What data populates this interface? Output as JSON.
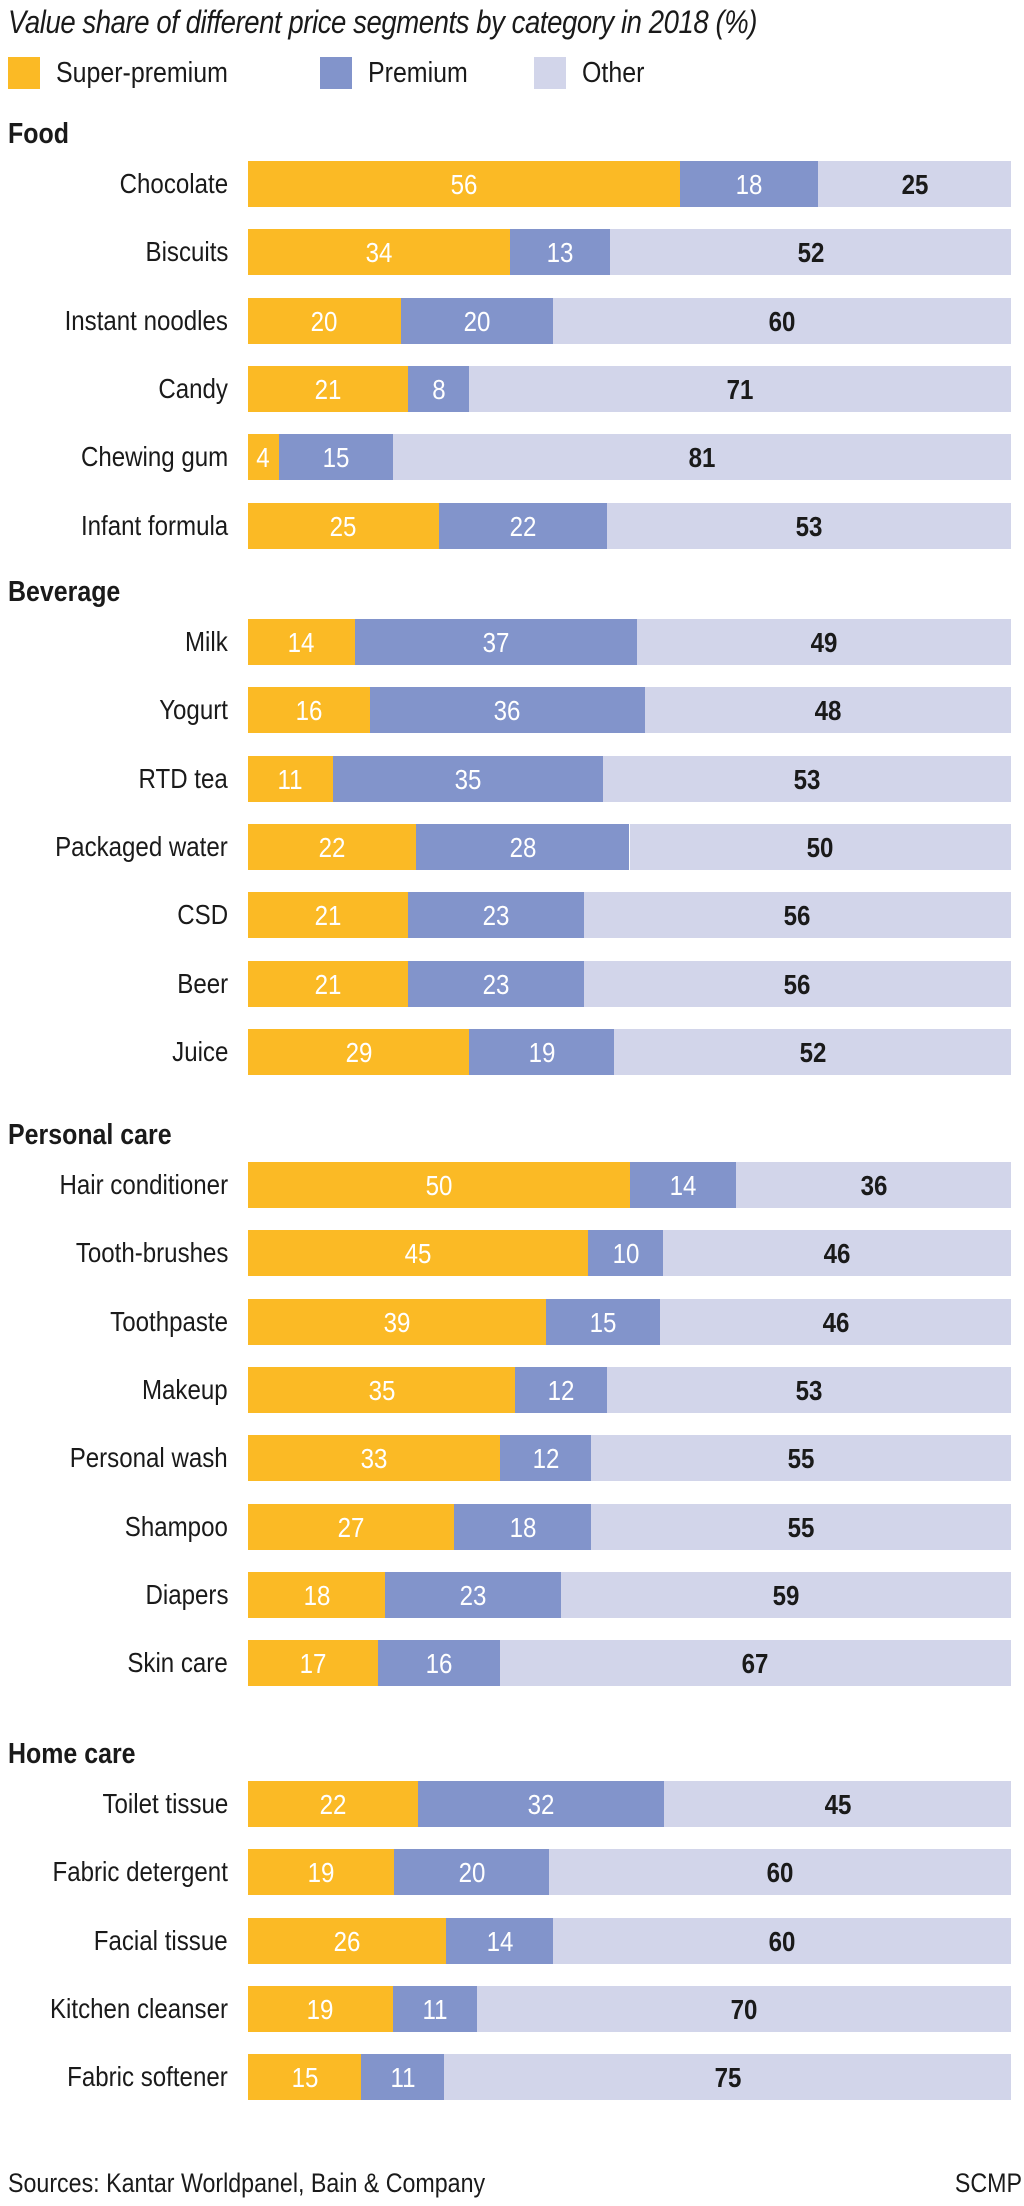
{
  "chart_data": {
    "type": "bar",
    "orientation": "horizontal",
    "stacked": true,
    "title": "Value share of different price segments by category in 2018 (%)",
    "xlabel": "",
    "ylabel": "",
    "xlim": [
      0,
      100
    ],
    "grid": false,
    "legend_position": "top-left",
    "legend": [
      {
        "name": "Super-premium",
        "color": "#FBBA25"
      },
      {
        "name": "Premium",
        "color": "#8294CB"
      },
      {
        "name": "Other",
        "color": "#D2D5EA"
      }
    ],
    "groups": [
      {
        "name": "Food",
        "items": [
          {
            "category": "Chocolate",
            "values": [
              56,
              18,
              25
            ]
          },
          {
            "category": "Biscuits",
            "values": [
              34,
              13,
              52
            ]
          },
          {
            "category": "Instant noodles",
            "values": [
              20,
              20,
              60
            ]
          },
          {
            "category": "Candy",
            "values": [
              21,
              8,
              71
            ]
          },
          {
            "category": "Chewing gum",
            "values": [
              4,
              15,
              81
            ]
          },
          {
            "category": "Infant formula",
            "values": [
              25,
              22,
              53
            ]
          }
        ]
      },
      {
        "name": "Beverage",
        "items": [
          {
            "category": "Milk",
            "values": [
              14,
              37,
              49
            ]
          },
          {
            "category": "Yogurt",
            "values": [
              16,
              36,
              48
            ]
          },
          {
            "category": "RTD tea",
            "values": [
              11,
              35,
              53
            ]
          },
          {
            "category": "Packaged water",
            "values": [
              22,
              28,
              50
            ]
          },
          {
            "category": "CSD",
            "values": [
              21,
              23,
              56
            ]
          },
          {
            "category": "Beer",
            "values": [
              21,
              23,
              56
            ]
          },
          {
            "category": "Juice",
            "values": [
              29,
              19,
              52
            ]
          }
        ]
      },
      {
        "name": "Personal care",
        "items": [
          {
            "category": "Hair conditioner",
            "values": [
              50,
              14,
              36
            ]
          },
          {
            "category": "Tooth-brushes",
            "values": [
              45,
              10,
              46
            ]
          },
          {
            "category": "Toothpaste",
            "values": [
              39,
              15,
              46
            ]
          },
          {
            "category": "Makeup",
            "values": [
              35,
              12,
              53
            ]
          },
          {
            "category": "Personal wash",
            "values": [
              33,
              12,
              55
            ]
          },
          {
            "category": "Shampoo",
            "values": [
              27,
              18,
              55
            ]
          },
          {
            "category": "Diapers",
            "values": [
              18,
              23,
              59
            ]
          },
          {
            "category": "Skin care",
            "values": [
              17,
              16,
              67
            ]
          }
        ]
      },
      {
        "name": "Home care",
        "items": [
          {
            "category": "Toilet tissue",
            "values": [
              22,
              32,
              45
            ]
          },
          {
            "category": "Fabric detergent",
            "values": [
              19,
              20,
              60
            ]
          },
          {
            "category": "Facial tissue",
            "values": [
              26,
              14,
              60
            ]
          },
          {
            "category": "Kitchen cleanser",
            "values": [
              19,
              11,
              70
            ]
          },
          {
            "category": "Fabric softener",
            "values": [
              15,
              11,
              75
            ]
          }
        ]
      }
    ],
    "label_colors": {
      "Super-premium": "#ffffff",
      "Premium": "#ffffff",
      "Other": "#1a1a1a"
    }
  },
  "source": "Sources: Kantar Worldpanel, Bain & Company",
  "credit": "SCMP"
}
